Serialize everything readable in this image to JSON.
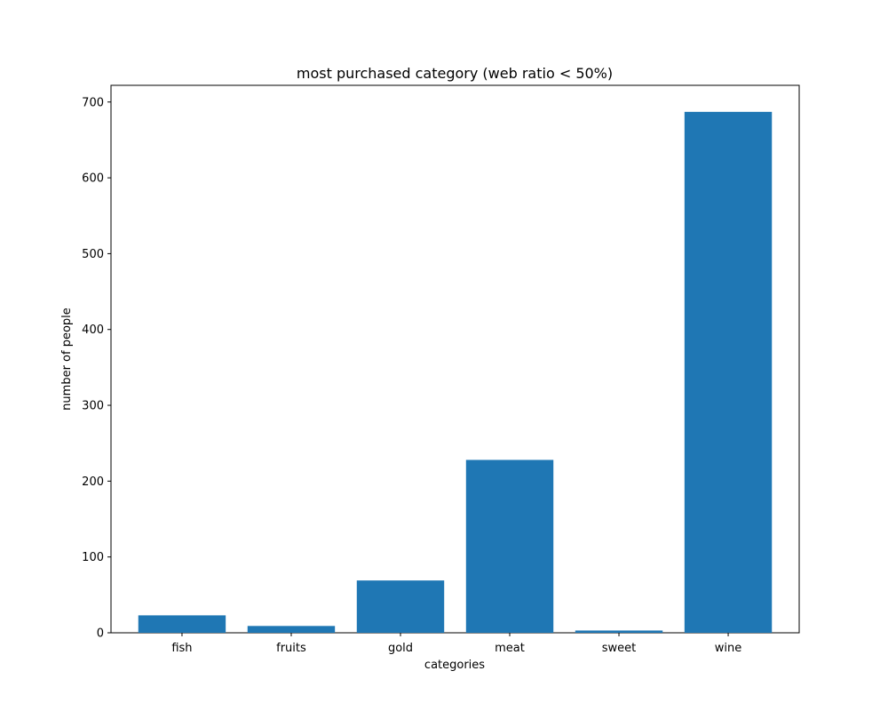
{
  "chart_data": {
    "type": "bar",
    "title": "most purchased category (web ratio < 50%)",
    "xlabel": "categories",
    "ylabel": "number of people",
    "categories": [
      "fish",
      "fruits",
      "gold",
      "meat",
      "sweet",
      "wine"
    ],
    "values": [
      23,
      9,
      69,
      228,
      3,
      687
    ],
    "ylim": [
      0,
      722
    ],
    "yticks": [
      0,
      100,
      200,
      300,
      400,
      500,
      600,
      700
    ],
    "grid": false,
    "bar_color": "#1f77b4"
  }
}
